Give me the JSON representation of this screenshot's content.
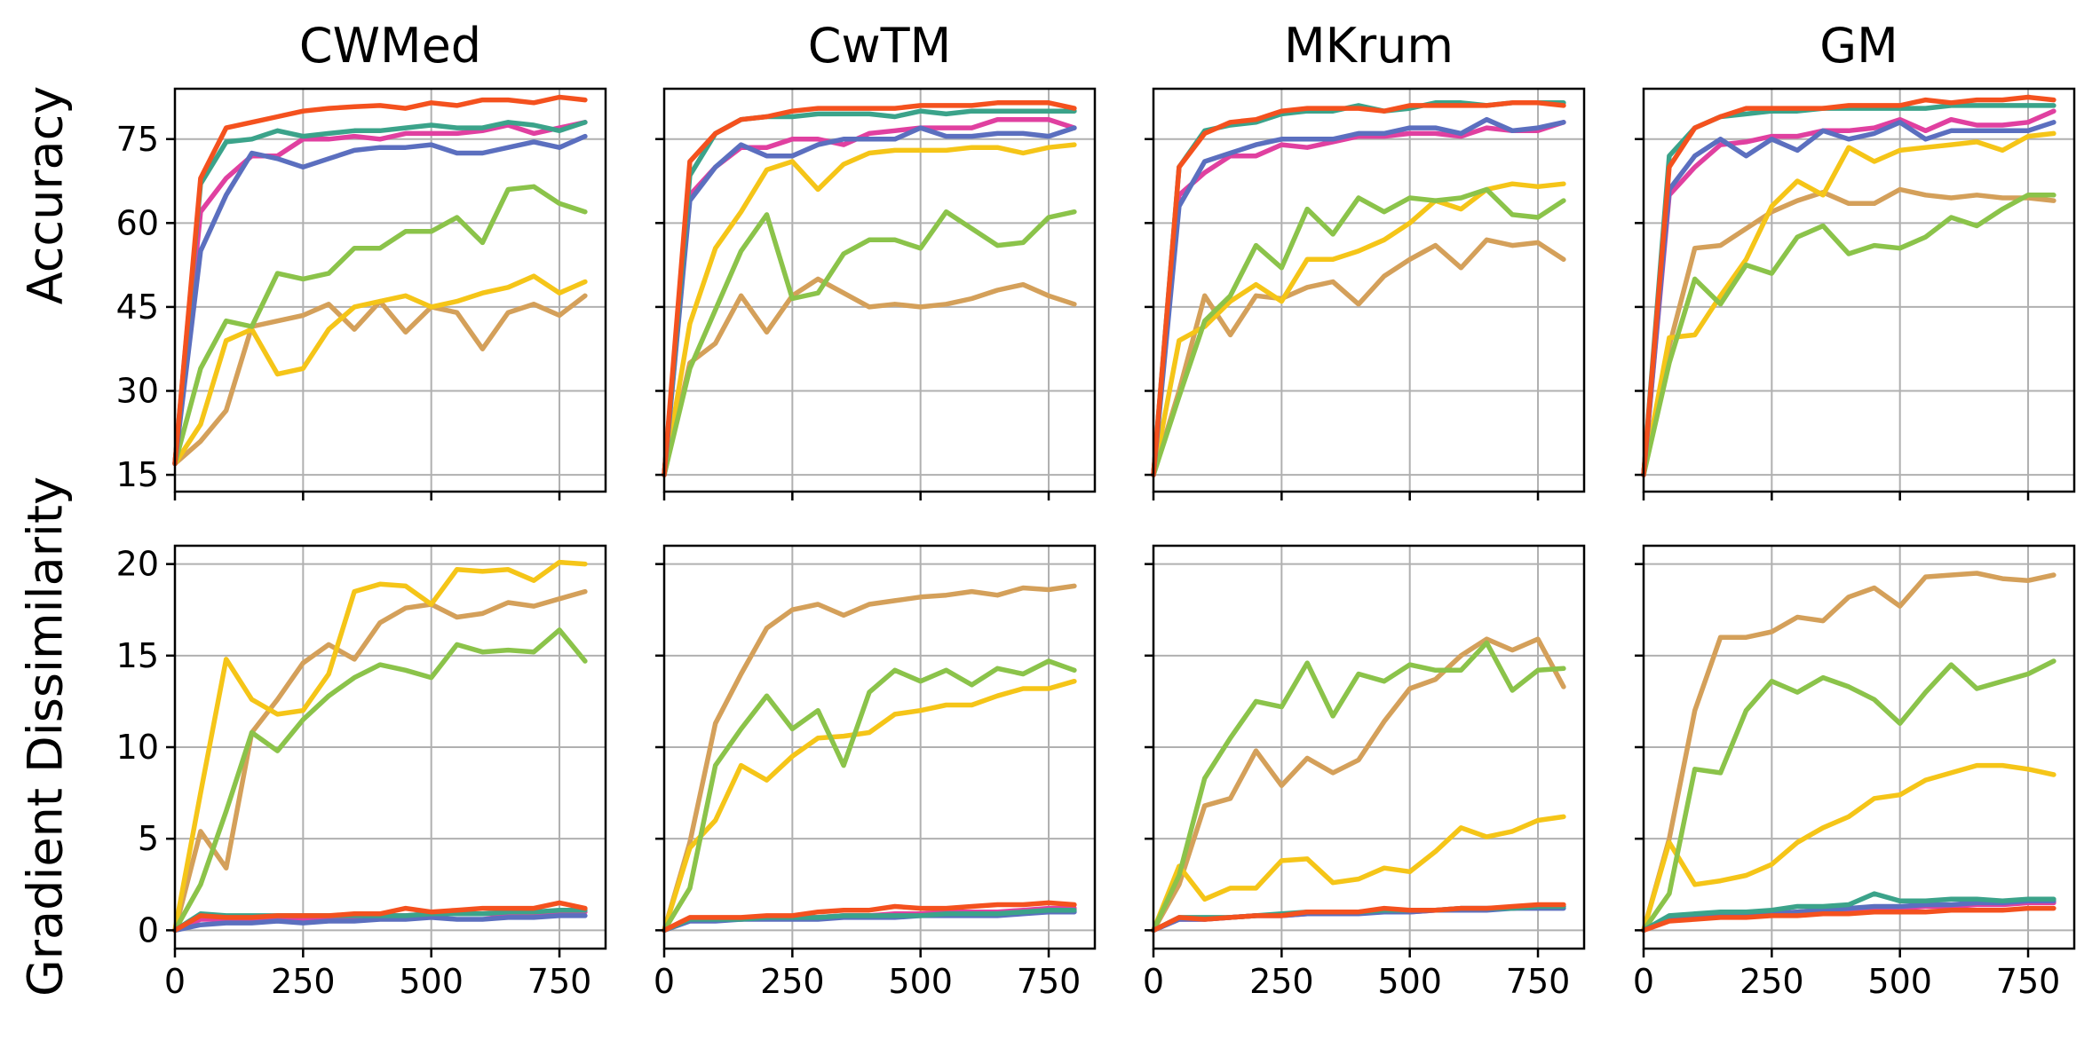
{
  "chart_data": {
    "type": "line",
    "x": [
      0,
      50,
      100,
      150,
      200,
      250,
      300,
      350,
      400,
      450,
      500,
      550,
      600,
      650,
      700,
      750,
      800
    ],
    "xticks": [
      0,
      250,
      500,
      750
    ],
    "xlim": [
      0,
      840
    ],
    "grid": true,
    "rows": [
      {
        "ylabel": "Accuracy",
        "ylim": [
          12,
          84
        ],
        "yticks": [
          15,
          30,
          45,
          60,
          75
        ]
      },
      {
        "ylabel": "Gradient Dissimilarity",
        "ylim": [
          -1,
          21
        ],
        "yticks": [
          0,
          5,
          10,
          15,
          20
        ]
      }
    ],
    "colors": [
      "#f4511e",
      "#e040a0",
      "#5b6fbf",
      "#8bc34a",
      "#f5c518",
      "#d4a05a",
      "#3ba38a"
    ],
    "panels": [
      {
        "title": "CWMed",
        "accuracy": [
          [
            17,
            68,
            77,
            78,
            79,
            80,
            80.5,
            80.8,
            81,
            80.5,
            81.5,
            81,
            82,
            82,
            81.5,
            82.5,
            82
          ],
          [
            17,
            62,
            68,
            72,
            72,
            75,
            75,
            75.5,
            75,
            76,
            76,
            76,
            76.5,
            77.5,
            76,
            77,
            78
          ],
          [
            17,
            55,
            65,
            72.5,
            71.5,
            70,
            71.5,
            73,
            73.5,
            73.5,
            74,
            72.5,
            72.5,
            73.5,
            74.5,
            73.5,
            75.5
          ],
          [
            17,
            34,
            42.5,
            41.5,
            51,
            50,
            51,
            55.5,
            55.5,
            58.5,
            58.5,
            61,
            56.5,
            66,
            66.5,
            63.5,
            62
          ],
          [
            17,
            24,
            39,
            41,
            33,
            34,
            41,
            45,
            46,
            47,
            45,
            46,
            47.5,
            48.5,
            50.5,
            47.5,
            49.5
          ],
          [
            17,
            21,
            26.5,
            41.5,
            42.5,
            43.5,
            45.5,
            41,
            46,
            40.5,
            45,
            44,
            37.5,
            44,
            45.5,
            43.5,
            47
          ],
          [
            17,
            67,
            74.5,
            75,
            76.5,
            75.5,
            76,
            76.5,
            76.5,
            77,
            77.5,
            77,
            77,
            78,
            77.5,
            76.5,
            78
          ]
        ],
        "dissimilarity": [
          [
            0,
            0.8,
            0.7,
            0.7,
            0.8,
            0.8,
            0.8,
            0.9,
            0.9,
            1.2,
            1.0,
            1.1,
            1.2,
            1.2,
            1.2,
            1.5,
            1.2
          ],
          [
            0,
            0.6,
            0.6,
            0.6,
            0.6,
            0.6,
            0.7,
            0.7,
            0.8,
            0.8,
            0.9,
            0.9,
            0.9,
            0.9,
            0.9,
            1.0,
            1.0
          ],
          [
            0,
            0.3,
            0.4,
            0.4,
            0.5,
            0.4,
            0.5,
            0.5,
            0.6,
            0.6,
            0.7,
            0.6,
            0.6,
            0.7,
            0.7,
            0.8,
            0.8
          ],
          [
            0,
            2.5,
            6.5,
            10.8,
            9.8,
            11.5,
            12.8,
            13.8,
            14.5,
            14.2,
            13.8,
            15.6,
            15.2,
            15.3,
            15.2,
            16.4,
            14.7
          ],
          [
            0,
            7.5,
            14.8,
            12.6,
            11.8,
            12.0,
            14.0,
            18.5,
            18.9,
            18.8,
            17.8,
            19.7,
            19.6,
            19.7,
            19.1,
            20.1,
            20.0
          ],
          [
            0,
            5.4,
            3.4,
            10.8,
            12.6,
            14.6,
            15.6,
            14.8,
            16.8,
            17.6,
            17.8,
            17.1,
            17.3,
            17.9,
            17.7,
            18.1,
            18.5
          ],
          [
            0,
            0.9,
            0.8,
            0.8,
            0.8,
            0.8,
            0.8,
            0.8,
            0.8,
            0.8,
            0.9,
            0.9,
            0.9,
            1.0,
            1.0,
            1.1,
            1.1
          ]
        ]
      },
      {
        "title": "CwTM",
        "accuracy": [
          [
            15,
            71,
            76,
            78.5,
            79,
            80,
            80.5,
            80.5,
            80.5,
            80.5,
            81,
            81,
            81,
            81.5,
            81.5,
            81.5,
            80.5
          ],
          [
            15,
            65,
            70,
            73.5,
            73.5,
            75,
            75,
            74,
            76,
            76.5,
            77,
            77,
            77,
            78.5,
            78.5,
            78.5,
            77
          ],
          [
            15,
            64,
            70,
            74,
            72,
            72,
            74,
            75,
            75,
            75,
            77,
            75.5,
            75.5,
            76,
            76,
            75.5,
            77
          ],
          [
            15,
            34,
            44.5,
            55,
            61.5,
            46.5,
            47.5,
            54.5,
            57,
            57,
            55.5,
            62,
            59,
            56,
            56.5,
            61,
            62
          ],
          [
            15,
            42,
            55.5,
            62,
            69.5,
            71,
            66,
            70.5,
            72.5,
            73,
            73,
            73,
            73.5,
            73.5,
            72.5,
            73.5,
            74
          ],
          [
            15,
            35,
            38.5,
            47,
            40.5,
            47,
            50,
            47.5,
            45,
            45.5,
            45,
            45.5,
            46.5,
            48,
            49,
            47,
            45.5
          ],
          [
            15,
            68.5,
            76,
            78.5,
            79,
            79,
            79.5,
            79.5,
            79.5,
            79,
            80,
            79.5,
            80,
            80,
            80,
            80,
            80
          ]
        ],
        "dissimilarity": [
          [
            0,
            0.7,
            0.7,
            0.7,
            0.8,
            0.8,
            1.0,
            1.1,
            1.1,
            1.3,
            1.2,
            1.2,
            1.3,
            1.4,
            1.4,
            1.5,
            1.4
          ],
          [
            0,
            0.6,
            0.6,
            0.6,
            0.7,
            0.7,
            0.7,
            0.8,
            0.8,
            0.9,
            0.9,
            1.0,
            1.0,
            1.0,
            1.1,
            1.2,
            1.2
          ],
          [
            0,
            0.5,
            0.5,
            0.6,
            0.6,
            0.6,
            0.6,
            0.7,
            0.7,
            0.7,
            0.8,
            0.8,
            0.8,
            0.8,
            0.9,
            1.0,
            1.0
          ],
          [
            0,
            2.3,
            9.0,
            11.0,
            12.8,
            11.0,
            12.0,
            9.0,
            13.0,
            14.2,
            13.6,
            14.2,
            13.4,
            14.3,
            14.0,
            14.7,
            14.2
          ],
          [
            0,
            4.5,
            6.0,
            9.0,
            8.2,
            9.5,
            10.5,
            10.6,
            10.8,
            11.8,
            12.0,
            12.3,
            12.3,
            12.8,
            13.2,
            13.2,
            13.6
          ],
          [
            0,
            4.8,
            11.3,
            14.0,
            16.5,
            17.5,
            17.8,
            17.2,
            17.8,
            18.0,
            18.2,
            18.3,
            18.5,
            18.3,
            18.7,
            18.6,
            18.8
          ],
          [
            0,
            0.6,
            0.6,
            0.6,
            0.7,
            0.7,
            0.7,
            0.8,
            0.8,
            0.8,
            0.8,
            0.9,
            0.9,
            0.9,
            1.0,
            1.1,
            1.1
          ]
        ]
      },
      {
        "title": "MKrum",
        "accuracy": [
          [
            15,
            70,
            76,
            78,
            78.5,
            80,
            80.5,
            80.5,
            80.5,
            80,
            81,
            81,
            81,
            81,
            81.5,
            81.5,
            81
          ],
          [
            15,
            65,
            69,
            72,
            72,
            74,
            73.5,
            74.5,
            75.5,
            75.5,
            76,
            76,
            75.5,
            77,
            76.5,
            76.5,
            78
          ],
          [
            15,
            63,
            71,
            72.5,
            74,
            75,
            75,
            75,
            76,
            76,
            77,
            77,
            76,
            78.5,
            76.5,
            77,
            78
          ],
          [
            15,
            29,
            42.5,
            47,
            56,
            52,
            62.5,
            58,
            64.5,
            62,
            64.5,
            64,
            64.5,
            66,
            61.5,
            61,
            64
          ],
          [
            15,
            39,
            41.5,
            46,
            49,
            46,
            53.5,
            53.5,
            55,
            57,
            60,
            64,
            62.5,
            66,
            67,
            66.5,
            67
          ],
          [
            15,
            30,
            47,
            40,
            47,
            46.5,
            48.5,
            49.5,
            45.5,
            50.5,
            53.5,
            56,
            52,
            57,
            56,
            56.5,
            53.5
          ],
          [
            15,
            70,
            76.5,
            77.5,
            78,
            79.5,
            80,
            80,
            81,
            80,
            80.5,
            81.5,
            81.5,
            81,
            81.5,
            81.5,
            81.5
          ]
        ],
        "dissimilarity": [
          [
            0,
            0.7,
            0.6,
            0.7,
            0.8,
            0.8,
            1.0,
            1.0,
            1.0,
            1.2,
            1.1,
            1.1,
            1.2,
            1.2,
            1.3,
            1.4,
            1.4
          ],
          [
            0,
            0.6,
            0.6,
            0.7,
            0.8,
            0.8,
            0.9,
            0.9,
            1.0,
            1.0,
            1.0,
            1.1,
            1.2,
            1.2,
            1.2,
            1.3,
            1.3
          ],
          [
            0,
            0.6,
            0.6,
            0.7,
            0.8,
            0.8,
            0.9,
            0.9,
            0.9,
            1.0,
            1.0,
            1.1,
            1.1,
            1.1,
            1.2,
            1.2,
            1.2
          ],
          [
            0,
            3.0,
            8.3,
            10.5,
            12.5,
            12.2,
            14.6,
            11.7,
            14.0,
            13.6,
            14.5,
            14.2,
            14.2,
            15.7,
            13.1,
            14.2,
            14.3
          ],
          [
            0,
            3.5,
            1.7,
            2.3,
            2.3,
            3.8,
            3.9,
            2.6,
            2.8,
            3.4,
            3.2,
            4.3,
            5.6,
            5.1,
            5.4,
            6.0,
            6.2
          ],
          [
            0,
            2.5,
            6.8,
            7.2,
            9.8,
            7.9,
            9.4,
            8.6,
            9.3,
            11.4,
            13.2,
            13.7,
            15.0,
            15.9,
            15.3,
            15.9,
            13.3
          ],
          [
            0,
            0.7,
            0.7,
            0.7,
            0.8,
            0.9,
            1.0,
            1.0,
            1.0,
            1.1,
            1.1,
            1.1,
            1.2,
            1.2,
            1.2,
            1.3,
            1.3
          ]
        ]
      },
      {
        "title": "GM",
        "accuracy": [
          [
            15,
            70,
            77,
            79,
            80.5,
            80.5,
            80.5,
            80.5,
            81,
            81,
            81,
            82,
            81.5,
            82,
            82,
            82.5,
            82
          ],
          [
            15,
            65,
            70,
            74,
            74.5,
            75.5,
            75.5,
            76.5,
            76.5,
            77,
            78.5,
            76.5,
            78.5,
            77.5,
            77.5,
            78,
            80
          ],
          [
            15,
            66,
            72,
            75,
            72,
            75,
            73,
            76.5,
            75,
            76,
            78,
            75,
            76.5,
            76.5,
            76.5,
            76.5,
            78
          ],
          [
            15,
            35,
            50,
            45.5,
            52.5,
            51,
            57.5,
            59.5,
            54.5,
            56,
            55.5,
            57.5,
            61,
            59.5,
            62.5,
            65,
            65
          ],
          [
            15,
            39.5,
            40,
            47,
            53.5,
            63,
            67.5,
            65,
            73.5,
            71,
            73,
            73.5,
            74,
            74.5,
            73,
            75.5,
            76
          ],
          [
            15,
            38,
            55.5,
            56,
            59,
            62,
            64,
            65.5,
            63.5,
            63.5,
            66,
            65,
            64.5,
            65,
            64.5,
            64.5,
            64
          ],
          [
            15,
            72,
            77,
            79,
            79.5,
            80,
            80,
            80.5,
            80.5,
            80.5,
            80.5,
            80.5,
            81,
            81,
            81,
            81,
            81
          ]
        ],
        "dissimilarity": [
          [
            0,
            0.5,
            0.6,
            0.7,
            0.7,
            0.8,
            0.8,
            0.9,
            0.9,
            1.0,
            1.0,
            1.0,
            1.1,
            1.1,
            1.1,
            1.2,
            1.2
          ],
          [
            0,
            0.7,
            0.8,
            0.8,
            0.9,
            0.9,
            1.0,
            1.1,
            1.1,
            1.2,
            1.2,
            1.3,
            1.3,
            1.4,
            1.4,
            1.5,
            1.5
          ],
          [
            0,
            0.7,
            0.8,
            0.8,
            0.9,
            0.9,
            1.0,
            1.1,
            1.2,
            1.3,
            1.3,
            1.4,
            1.4,
            1.5,
            1.5,
            1.6,
            1.6
          ],
          [
            0,
            2.0,
            8.8,
            8.6,
            12.0,
            13.6,
            13.0,
            13.8,
            13.3,
            12.6,
            11.3,
            13.0,
            14.5,
            13.2,
            13.6,
            14.0,
            14.7
          ],
          [
            0,
            4.8,
            2.5,
            2.7,
            3.0,
            3.6,
            4.8,
            5.6,
            6.2,
            7.2,
            7.4,
            8.2,
            8.6,
            9.0,
            9.0,
            8.8,
            8.5
          ],
          [
            0,
            5.0,
            12.0,
            16.0,
            16.0,
            16.3,
            17.1,
            16.9,
            18.2,
            18.7,
            17.7,
            19.3,
            19.4,
            19.5,
            19.2,
            19.1,
            19.4
          ],
          [
            0,
            0.8,
            0.9,
            1.0,
            1.0,
            1.1,
            1.3,
            1.3,
            1.4,
            2.0,
            1.6,
            1.6,
            1.7,
            1.7,
            1.6,
            1.7,
            1.7
          ]
        ]
      }
    ]
  }
}
